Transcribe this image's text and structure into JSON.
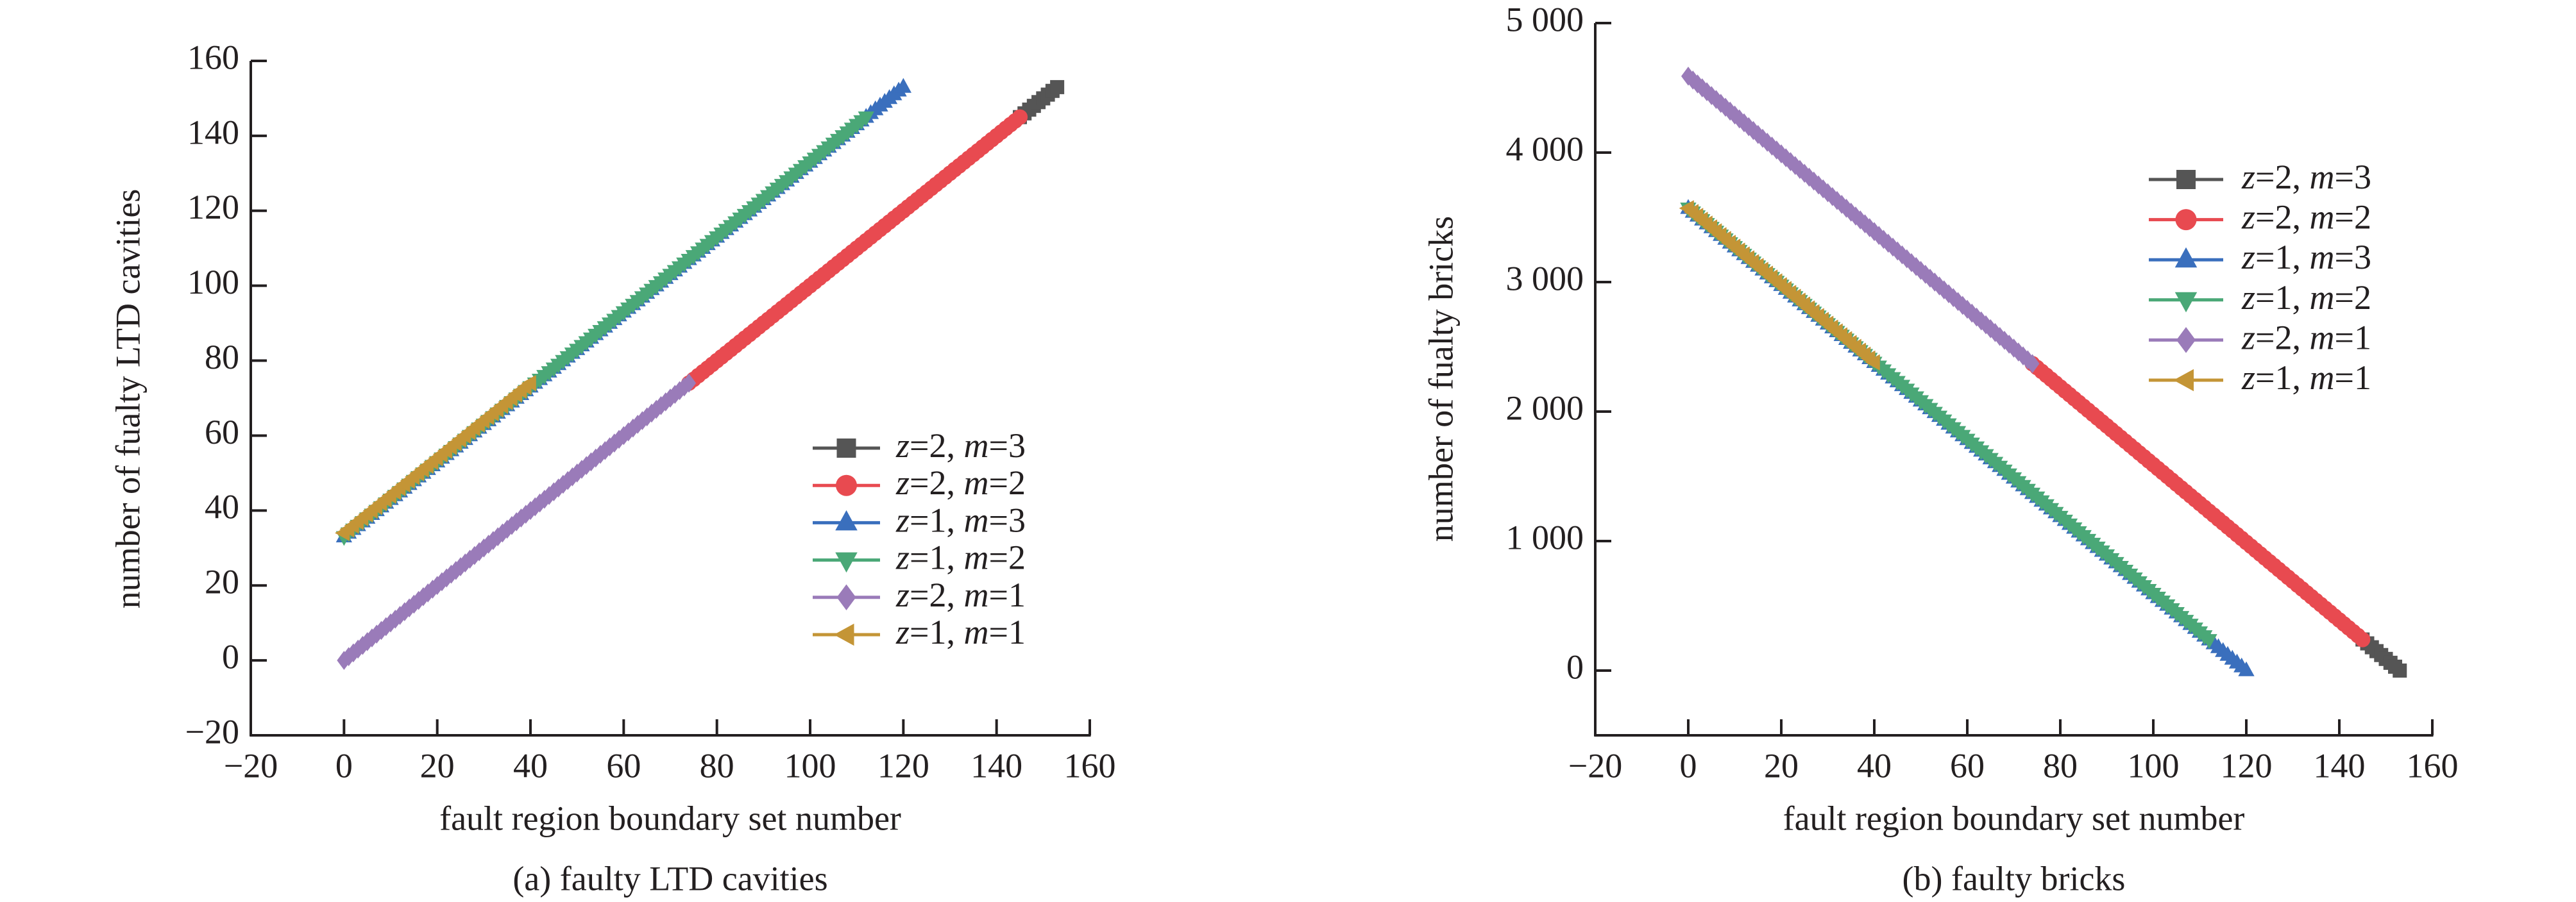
{
  "chart_data": [
    {
      "type": "line",
      "caption": "(a) faulty LTD cavities",
      "xlabel": "fault region boundary set number",
      "ylabel": "number of fualty LTD cavities",
      "xlim": [
        -20,
        160
      ],
      "ylim": [
        -20,
        160
      ],
      "xticks": [
        -20,
        0,
        20,
        40,
        60,
        80,
        100,
        120,
        140,
        160
      ],
      "yticks": [
        -20,
        0,
        20,
        40,
        60,
        80,
        100,
        120,
        140,
        160
      ],
      "xtick_labels": [
        "−20",
        "0",
        "20",
        "40",
        "60",
        "80",
        "100",
        "120",
        "140",
        "160"
      ],
      "ytick_labels": [
        "−20",
        "0",
        "20",
        "40",
        "60",
        "80",
        "100",
        "120",
        "140",
        "160"
      ],
      "legend_position": "center-right",
      "series": [
        {
          "name": "z=2, m=3",
          "marker": "square",
          "color": "#555555",
          "x": [
            145,
            153
          ],
          "y": [
            145,
            153
          ]
        },
        {
          "name": "z=2, m=2",
          "marker": "circle",
          "color": "#e84a50",
          "x": [
            74,
            145
          ],
          "y": [
            74,
            145
          ]
        },
        {
          "name": "z=1, m=3",
          "marker": "triangle-up",
          "color": "#3a6fbd",
          "x": [
            0,
            120
          ],
          "y": [
            33,
            153
          ]
        },
        {
          "name": "z=1, m=2",
          "marker": "triangle-down",
          "color": "#4aa877",
          "x": [
            0,
            112
          ],
          "y": [
            33,
            145
          ]
        },
        {
          "name": "z=2, m=1",
          "marker": "diamond",
          "color": "#9a7bb9",
          "x": [
            0,
            74
          ],
          "y": [
            0,
            74
          ]
        },
        {
          "name": "z=1, m=1",
          "marker": "triangle-left",
          "color": "#c49536",
          "x": [
            0,
            40
          ],
          "y": [
            34,
            74
          ]
        }
      ]
    },
    {
      "type": "line",
      "caption": "(b) faulty bricks",
      "xlabel": "fault region boundary set number",
      "ylabel": "number of fualty bricks",
      "xlim": [
        -20,
        160
      ],
      "ylim": [
        -500,
        5000
      ],
      "xticks": [
        -20,
        0,
        20,
        40,
        60,
        80,
        100,
        120,
        140,
        160
      ],
      "yticks": [
        0,
        1000,
        2000,
        3000,
        4000,
        5000
      ],
      "xtick_labels": [
        "−20",
        "0",
        "20",
        "40",
        "60",
        "80",
        "100",
        "120",
        "140",
        "160"
      ],
      "ytick_labels": [
        "0",
        "1 000",
        "2 000",
        "3 000",
        "4 000",
        "5 000"
      ],
      "legend_position": "top-right",
      "series": [
        {
          "name": "z=2, m=3",
          "marker": "square",
          "color": "#555555",
          "x": [
            145,
            153
          ],
          "y": [
            240,
            0
          ]
        },
        {
          "name": "z=2, m=2",
          "marker": "circle",
          "color": "#e84a50",
          "x": [
            74,
            145
          ],
          "y": [
            2370,
            240
          ]
        },
        {
          "name": "z=1, m=3",
          "marker": "triangle-up",
          "color": "#3a6fbd",
          "x": [
            0,
            120
          ],
          "y": [
            3570,
            0
          ]
        },
        {
          "name": "z=1, m=2",
          "marker": "triangle-down",
          "color": "#4aa877",
          "x": [
            0,
            112
          ],
          "y": [
            3570,
            238
          ]
        },
        {
          "name": "z=2, m=1",
          "marker": "diamond",
          "color": "#9a7bb9",
          "x": [
            0,
            74
          ],
          "y": [
            4590,
            2370
          ]
        },
        {
          "name": "z=1, m=1",
          "marker": "triangle-left",
          "color": "#c49536",
          "x": [
            0,
            40
          ],
          "y": [
            3570,
            2380
          ]
        }
      ]
    }
  ]
}
